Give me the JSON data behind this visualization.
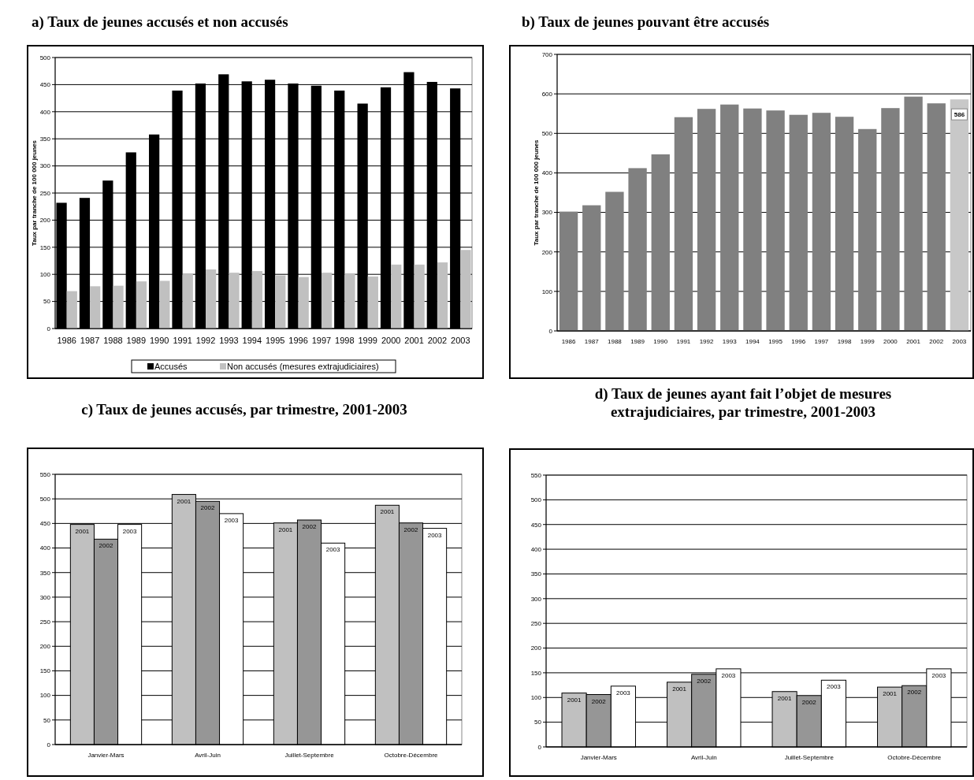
{
  "chart_data": [
    {
      "type": "bar",
      "title": "a) Taux de jeunes accusés et non accusés",
      "ylabel": "Taux par tranche de 100 000 jeunes",
      "categories": [
        "1986",
        "1987",
        "1988",
        "1989",
        "1990",
        "1991",
        "1992",
        "1993",
        "1994",
        "1995",
        "1996",
        "1997",
        "1998",
        "1999",
        "2000",
        "2001",
        "2002",
        "2003"
      ],
      "series": [
        {
          "name": "Accusés",
          "color": "#000000",
          "values": [
            232,
            241,
            273,
            325,
            358,
            439,
            452,
            469,
            456,
            459,
            452,
            448,
            439,
            415,
            445,
            473,
            455,
            443
          ]
        },
        {
          "name": "Non accusés (mesures extrajudiciaires)",
          "color": "#c0c0c0",
          "values": [
            69,
            78,
            79,
            87,
            88,
            101,
            109,
            103,
            106,
            98,
            95,
            103,
            102,
            96,
            118,
            118,
            122,
            145
          ]
        }
      ],
      "ylim": [
        0,
        500
      ],
      "yticks": [
        0,
        50,
        100,
        150,
        200,
        250,
        300,
        350,
        400,
        450,
        500
      ],
      "grid": "y",
      "legend": "bottom"
    },
    {
      "type": "bar",
      "title": "b) Taux de jeunes pouvant être accusés",
      "ylabel": "Taux par tranche de 100 000 jeunes",
      "categories": [
        "1986",
        "1987",
        "1988",
        "1989",
        "1990",
        "1991",
        "1992",
        "1993",
        "1994",
        "1995",
        "1996",
        "1997",
        "1998",
        "1999",
        "2000",
        "2001",
        "2002",
        "2003"
      ],
      "values": [
        302,
        318,
        352,
        412,
        447,
        541,
        562,
        573,
        563,
        558,
        547,
        552,
        542,
        511,
        564,
        593,
        576,
        586
      ],
      "colors": [
        "#808080",
        "#808080",
        "#808080",
        "#808080",
        "#808080",
        "#808080",
        "#808080",
        "#808080",
        "#808080",
        "#808080",
        "#808080",
        "#808080",
        "#808080",
        "#808080",
        "#808080",
        "#808080",
        "#808080",
        "#c8c8c8"
      ],
      "value_labels": [
        null,
        null,
        null,
        null,
        null,
        null,
        null,
        null,
        null,
        null,
        null,
        null,
        null,
        null,
        null,
        null,
        null,
        "586"
      ],
      "ylim": [
        0,
        700
      ],
      "yticks": [
        0,
        100,
        200,
        300,
        400,
        500,
        600,
        700
      ],
      "grid": "y"
    },
    {
      "type": "bar",
      "title": "c) Taux de jeunes accusés, par trimestre, 2001-2003",
      "categories": [
        "Janvier-Mars",
        "Avril-Juin",
        "Juillet-Septembre",
        "Octobre-Décembre"
      ],
      "series": [
        {
          "name": "2001",
          "color": "#c0c0c0",
          "values": [
            448,
            509,
            451,
            487
          ]
        },
        {
          "name": "2002",
          "color": "#969696",
          "values": [
            418,
            495,
            457,
            451
          ]
        },
        {
          "name": "2003",
          "color": "#ffffff",
          "values": [
            448,
            470,
            410,
            440
          ]
        }
      ],
      "ylim": [
        0,
        550
      ],
      "yticks": [
        0,
        50,
        100,
        150,
        200,
        250,
        300,
        350,
        400,
        450,
        500,
        550
      ],
      "grid": "y"
    },
    {
      "type": "bar",
      "title": "d) Taux de jeunes ayant fait l’objet de mesures extrajudiciaires, par trimestre, 2001-2003",
      "categories": [
        "Janvier-Mars",
        "Avril-Juin",
        "Juillet-Septembre",
        "Octobre-Décembre"
      ],
      "series": [
        {
          "name": "2001",
          "color": "#c0c0c0",
          "values": [
            109,
            131,
            112,
            121
          ]
        },
        {
          "name": "2002",
          "color": "#969696",
          "values": [
            106,
            147,
            104,
            124
          ]
        },
        {
          "name": "2003",
          "color": "#ffffff",
          "values": [
            123,
            158,
            135,
            158
          ]
        }
      ],
      "ylim": [
        0,
        550
      ],
      "yticks": [
        0,
        50,
        100,
        150,
        200,
        250,
        300,
        350,
        400,
        450,
        500,
        550
      ],
      "grid": "y"
    }
  ]
}
